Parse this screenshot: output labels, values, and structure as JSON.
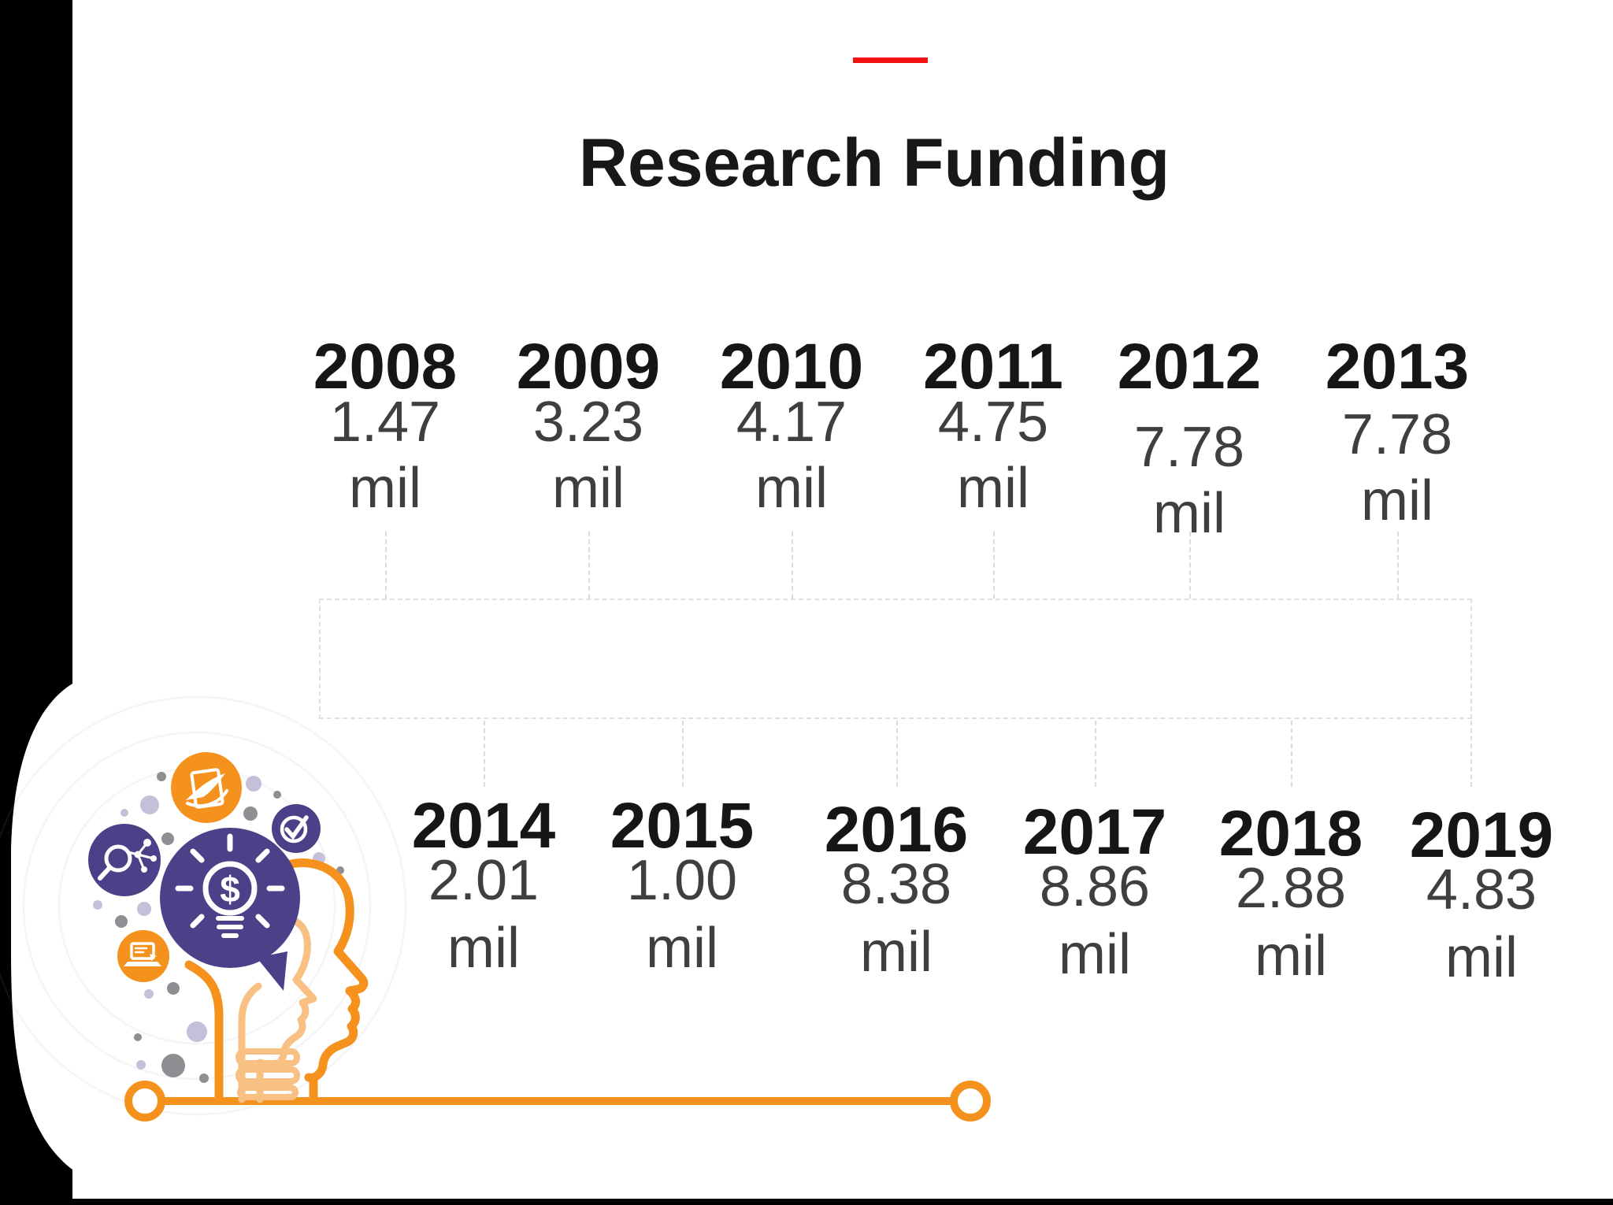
{
  "header": {
    "title": "Research Funding",
    "accent_color": "#f31111"
  },
  "timeline": {
    "unit_label": "mil",
    "top_row": [
      {
        "year": "2008",
        "value": "1.47",
        "unit": "mil"
      },
      {
        "year": "2009",
        "value": "3.23",
        "unit": "mil"
      },
      {
        "year": "2010",
        "value": "4.17",
        "unit": "mil"
      },
      {
        "year": "2011",
        "value": "4.75",
        "unit": "mil"
      },
      {
        "year": "2012",
        "value": "7.78",
        "unit": "mil"
      },
      {
        "year": "2013",
        "value": "7.78",
        "unit": "mil"
      }
    ],
    "bottom_row": [
      {
        "year": "2014",
        "value": "2.01",
        "unit": "mil"
      },
      {
        "year": "2015",
        "value": "1.00",
        "unit": "mil"
      },
      {
        "year": "2016",
        "value": "8.38",
        "unit": "mil"
      },
      {
        "year": "2017",
        "value": "8.86",
        "unit": "mil"
      },
      {
        "year": "2018",
        "value": "2.88",
        "unit": "mil"
      },
      {
        "year": "2019",
        "value": "4.83",
        "unit": "mil"
      }
    ]
  },
  "chart_data": {
    "type": "table",
    "title": "Research Funding",
    "categories": [
      "2008",
      "2009",
      "2010",
      "2011",
      "2012",
      "2013",
      "2014",
      "2015",
      "2016",
      "2017",
      "2018",
      "2019"
    ],
    "values": [
      1.47,
      3.23,
      4.17,
      4.75,
      7.78,
      7.78,
      2.01,
      1.0,
      8.38,
      8.86,
      2.88,
      4.83
    ],
    "unit": "mil",
    "layout_hint": "two-row milestone timeline, years 2008-2013 above dashed band, 2014-2019 below"
  },
  "illustration": {
    "name": "head-lightbulb-thinking",
    "icons": [
      "dollar-lightbulb-icon",
      "quill-document-icon",
      "search-molecule-icon",
      "check-icon",
      "laptop-icon"
    ],
    "colors": {
      "orange": "#F5921E",
      "light_orange": "#F9C083",
      "purple": "#4B4188",
      "gray_dot": "#8E8E93",
      "lavender_dot": "#C5BFD9"
    }
  },
  "frame": {
    "background": "#FFFFFF",
    "left_bar_color": "#000000",
    "bottom_strip_color": "#000000"
  }
}
